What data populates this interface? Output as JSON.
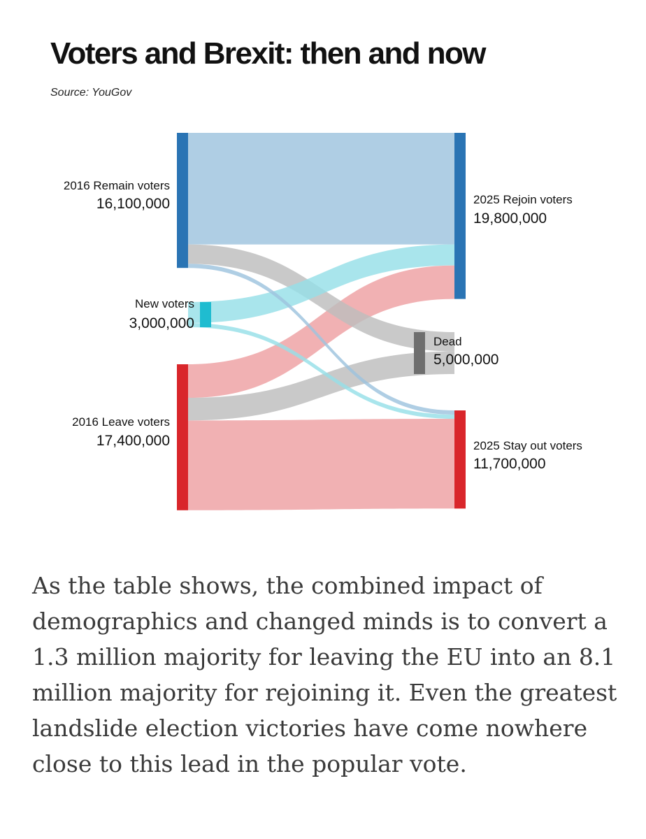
{
  "header": {
    "title": "Voters and Brexit: then and now",
    "source": "Source: YouGov"
  },
  "chart_data": {
    "type": "sankey",
    "title": "Voters and Brexit: then and now",
    "source": "Source: YouGov",
    "units": "voters",
    "nodes": [
      {
        "id": "remain",
        "label": "2016 Remain voters",
        "value_label": "16,100,000",
        "value": 16100000,
        "color": "#2a74b4",
        "side": "left"
      },
      {
        "id": "new",
        "label": "New voters",
        "value_label": "3,000,000",
        "value": 3000000,
        "color": "#1fbcd0",
        "side": "left"
      },
      {
        "id": "leave",
        "label": "2016 Leave voters",
        "value_label": "17,400,000",
        "value": 17400000,
        "color": "#d9262b",
        "side": "left"
      },
      {
        "id": "rejoin",
        "label": "2025 Rejoin voters",
        "value_label": "19,800,000",
        "value": 19800000,
        "color": "#2a74b4",
        "side": "right"
      },
      {
        "id": "dead",
        "label": "Dead",
        "value_label": "5,000,000",
        "value": 5000000,
        "color": "#6e6e6e",
        "side": "right"
      },
      {
        "id": "stayout",
        "label": "2025 Stay out voters",
        "value_label": "11,700,000",
        "value": 11700000,
        "color": "#d9262b",
        "side": "right"
      }
    ],
    "links": [
      {
        "source": "remain",
        "target": "rejoin",
        "value": 13300000,
        "color": "#9ec3de"
      },
      {
        "source": "remain",
        "target": "dead",
        "value": 2300000,
        "color": "#bdbdbd"
      },
      {
        "source": "remain",
        "target": "stayout",
        "value": 500000,
        "color": "#9ec3de"
      },
      {
        "source": "new",
        "target": "rejoin",
        "value": 2500000,
        "color": "#96dfe8"
      },
      {
        "source": "new",
        "target": "stayout",
        "value": 500000,
        "color": "#96dfe8"
      },
      {
        "source": "leave",
        "target": "rejoin",
        "value": 4000000,
        "color": "#eea0a2"
      },
      {
        "source": "leave",
        "target": "dead",
        "value": 2700000,
        "color": "#bdbdbd"
      },
      {
        "source": "leave",
        "target": "stayout",
        "value": 10700000,
        "color": "#eea0a2"
      }
    ]
  },
  "body": {
    "paragraph": "As the table shows, the combined impact of demographics and changed minds is to convert a 1.3 million majority for leaving the EU into an 8.1 million majority for rejoining it. Even the greatest landslide election victories have come nowhere close to this lead in the popular vote."
  }
}
